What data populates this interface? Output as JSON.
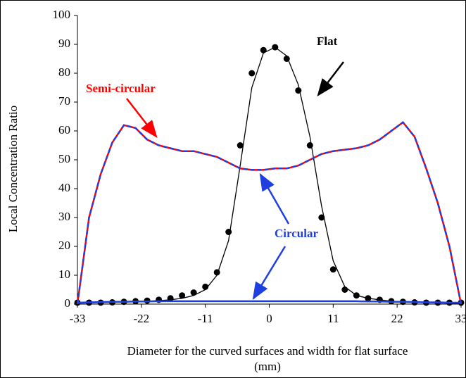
{
  "chart_data": {
    "type": "line",
    "xlabel": "Diameter  for the curved surfaces  and width for flat surface",
    "xlabel2": "(mm)",
    "ylabel": "Local Concentration  Ratio",
    "x": [
      -33,
      -31,
      -29,
      -27,
      -25,
      -23,
      -21,
      -19,
      -17,
      -15,
      -13,
      -11,
      -9,
      -7,
      -5,
      -3,
      -1,
      1,
      3,
      5,
      7,
      9,
      11,
      13,
      15,
      17,
      19,
      21,
      23,
      25,
      27,
      29,
      31,
      33
    ],
    "series": [
      {
        "name": "Flat",
        "color": "#000000",
        "style": "line",
        "values": [
          0.3,
          0.4,
          0.5,
          0.6,
          0.7,
          0.8,
          1,
          1.2,
          1.5,
          2,
          3,
          5,
          10,
          22,
          48,
          75,
          87,
          89,
          86,
          76,
          58,
          34,
          15,
          6,
          3,
          2,
          1.5,
          1,
          0.8,
          0.6,
          0.5,
          0.4,
          0.3,
          0.2
        ]
      },
      {
        "color": "#000000",
        "style": "dots",
        "values": [
          0.5,
          0.5,
          0.5,
          0.6,
          0.8,
          1,
          1.2,
          1.5,
          2,
          3,
          4,
          6,
          11,
          25,
          55,
          80,
          88,
          89,
          85,
          74,
          55,
          30,
          12,
          5,
          3,
          2,
          1.5,
          1,
          0.8,
          0.6,
          0.5,
          0.5,
          0.5,
          0.5
        ]
      },
      {
        "name": "Semi-circular",
        "color": "#ff0000",
        "style": "line",
        "values": [
          0,
          30,
          45,
          56,
          62,
          61,
          57,
          55,
          54,
          53,
          53,
          52,
          51,
          49,
          47,
          46.5,
          46.5,
          47,
          47,
          48,
          50,
          52,
          53,
          53.5,
          54,
          55,
          57,
          60,
          63,
          58,
          47,
          35,
          20,
          0
        ]
      },
      {
        "name": "Circular",
        "color": "#1f3fe0",
        "style": "dashed",
        "values": [
          0,
          30,
          45,
          56,
          62,
          61,
          57,
          55,
          54,
          53,
          53,
          52,
          51,
          49,
          47,
          46.5,
          46.5,
          47,
          47,
          48,
          50,
          52,
          53,
          53.5,
          54,
          55,
          57,
          60,
          63,
          58,
          47,
          35,
          20,
          0
        ]
      },
      {
        "color": "#1f3fe0",
        "style": "line",
        "values": [
          0.5,
          0.6,
          0.7,
          0.8,
          0.8,
          0.9,
          0.9,
          1,
          1,
          1,
          1,
          1,
          1,
          1,
          1,
          1,
          1,
          1,
          1,
          1,
          1,
          1,
          1,
          1,
          1,
          0.9,
          0.9,
          0.8,
          0.8,
          0.7,
          0.6,
          0.6,
          0.5,
          0.5
        ]
      }
    ],
    "xlim": [
      -33,
      33
    ],
    "xticks": [
      -33,
      -22,
      -11,
      0,
      11,
      22,
      33
    ],
    "ylim": [
      0,
      100
    ],
    "yticks": [
      0,
      10,
      20,
      30,
      40,
      50,
      60,
      70,
      80,
      90,
      100
    ],
    "grid": false
  }
}
